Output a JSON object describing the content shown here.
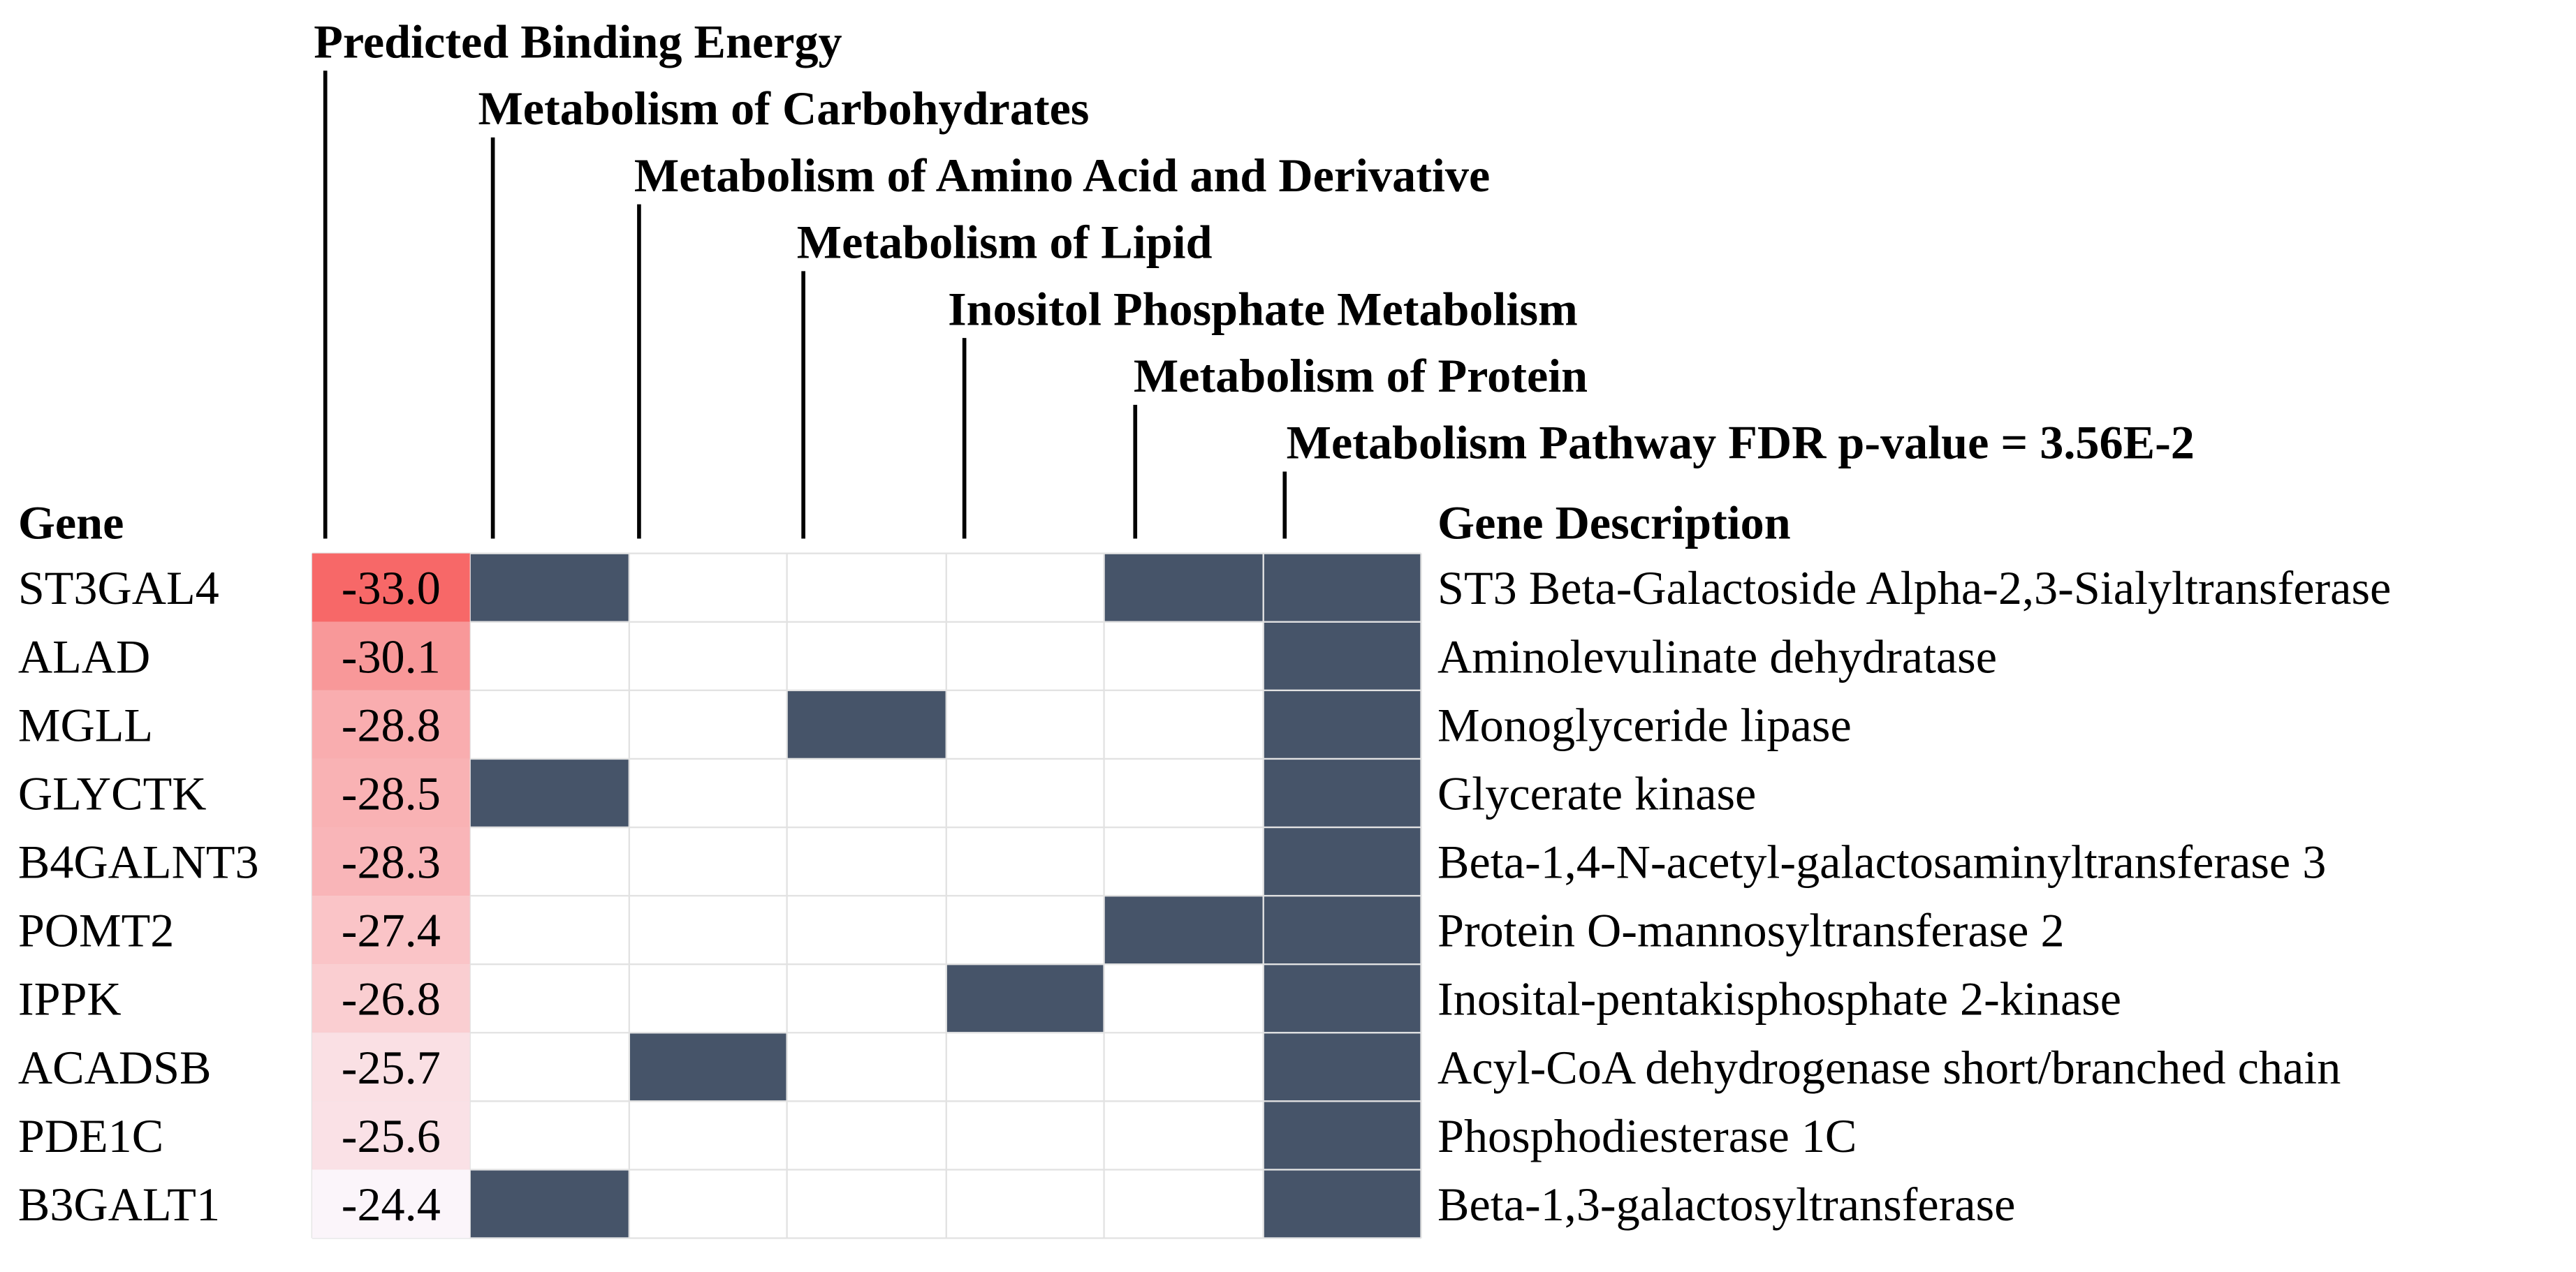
{
  "table": {
    "header": {
      "gene": "Gene",
      "description": "Gene Description",
      "columns": [
        "Predicted Binding Energy",
        "Metabolism of Carbohydrates",
        "Metabolism of Amino Acid and Derivative",
        "Metabolism of Lipid",
        "Inositol Phosphate Metabolism",
        "Metabolism of Protein",
        "Metabolism Pathway FDR p-value = 3.56E-2"
      ]
    },
    "rows": [
      {
        "gene": "ST3GAL4",
        "energy": "-33.0",
        "pathways": [
          1,
          0,
          0,
          0,
          1,
          1
        ],
        "description": "ST3 Beta-Galactoside Alpha-2,3-Sialyltransferase"
      },
      {
        "gene": "ALAD",
        "energy": "-30.1",
        "pathways": [
          0,
          0,
          0,
          0,
          0,
          1
        ],
        "description": "Aminolevulinate dehydratase"
      },
      {
        "gene": "MGLL",
        "energy": "-28.8",
        "pathways": [
          0,
          0,
          1,
          0,
          0,
          1
        ],
        "description": "Monoglyceride lipase"
      },
      {
        "gene": "GLYCTK",
        "energy": "-28.5",
        "pathways": [
          1,
          0,
          0,
          0,
          0,
          1
        ],
        "description": "Glycerate kinase"
      },
      {
        "gene": "B4GALNT3",
        "energy": "-28.3",
        "pathways": [
          0,
          0,
          0,
          0,
          0,
          1
        ],
        "description": "Beta-1,4-N-acetyl-galactosaminyltransferase 3"
      },
      {
        "gene": "POMT2",
        "energy": "-27.4",
        "pathways": [
          0,
          0,
          0,
          0,
          1,
          1
        ],
        "description": "Protein O-mannosyltransferase 2"
      },
      {
        "gene": "IPPK",
        "energy": "-26.8",
        "pathways": [
          0,
          0,
          0,
          1,
          0,
          1
        ],
        "description": "Inosital-pentakisphosphate 2-kinase"
      },
      {
        "gene": "ACADSB",
        "energy": "-25.7",
        "pathways": [
          0,
          1,
          0,
          0,
          0,
          1
        ],
        "description": "Acyl-CoA dehydrogenase short/branched chain"
      },
      {
        "gene": "PDE1C",
        "energy": "-25.6",
        "pathways": [
          0,
          0,
          0,
          0,
          0,
          1
        ],
        "description": "Phosphodiesterase 1C"
      },
      {
        "gene": "B3GALT1",
        "energy": "-24.4",
        "pathways": [
          1,
          0,
          0,
          0,
          0,
          1
        ],
        "description": "Beta-1,3-galactosyltransferase"
      }
    ]
  }
}
